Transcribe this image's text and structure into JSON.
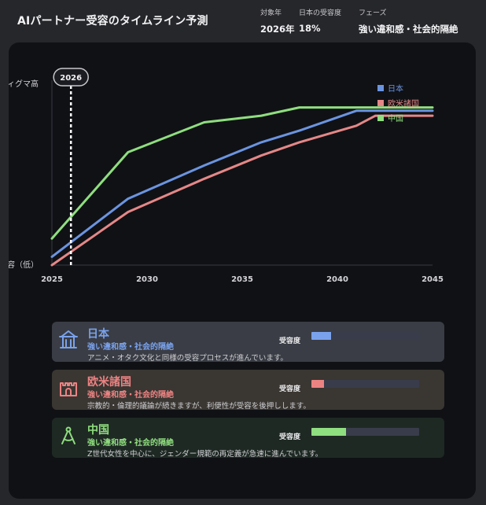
{
  "header": {
    "title": "AIパートナー受容のタイムライン予測",
    "stats": [
      {
        "label": "対象年",
        "value": "2026年"
      },
      {
        "label": "日本の受容度",
        "value": "18%"
      },
      {
        "label": "フェーズ",
        "value": "強い違和感・社会的隔絶"
      }
    ]
  },
  "chart_data": {
    "type": "line",
    "x": [
      2025,
      2029,
      2033,
      2036,
      2038,
      2041,
      2042,
      2045
    ],
    "xticks": [
      2025,
      2030,
      2035,
      2040,
      2045
    ],
    "xlim": [
      2025,
      2045
    ],
    "ylim": [
      0,
      100
    ],
    "y_top_label": "ィグマ高",
    "y_bottom_label": "容（低）",
    "marker": {
      "label": "2026",
      "x": 2026
    },
    "series": [
      {
        "name": "日本",
        "color": "#6b94e0",
        "values": [
          5,
          40,
          60,
          74,
          81,
          93,
          93,
          93
        ]
      },
      {
        "name": "欧米諸国",
        "color": "#e58787",
        "values": [
          0,
          32,
          52,
          66,
          74,
          84,
          90,
          90
        ]
      },
      {
        "name": "中国",
        "color": "#8fde7f",
        "values": [
          16,
          68,
          86,
          90,
          95,
          95,
          95,
          95
        ]
      }
    ],
    "grid": false,
    "legend": "top-right"
  },
  "cards": [
    {
      "name": "日本",
      "phase": "強い違和感・社会的隔絶",
      "desc": "アニメ・オタク文化と同様の受容プロセスが進んでいます。",
      "gauge_label": "受容度",
      "acceptance": 0.18,
      "color": "#7aa2ec",
      "bg": "#3a3d45",
      "icon": "shrine-icon"
    },
    {
      "name": "欧米諸国",
      "phase": "強い違和感・社会的隔絶",
      "desc": "宗教的・倫理的議論が続きますが、利便性が受容を後押しします。",
      "gauge_label": "受容度",
      "acceptance": 0.12,
      "color": "#ec8383",
      "bg": "#3a3632",
      "icon": "castle-icon"
    },
    {
      "name": "中国",
      "phase": "強い違和感・社会的隔絶",
      "desc": "Z世代女性を中心に、ジェンダー規範の再定義が急速に進んでいます。",
      "gauge_label": "受容度",
      "acceptance": 0.32,
      "color": "#8fde7f",
      "bg": "#1f2924",
      "icon": "compass-icon"
    }
  ]
}
